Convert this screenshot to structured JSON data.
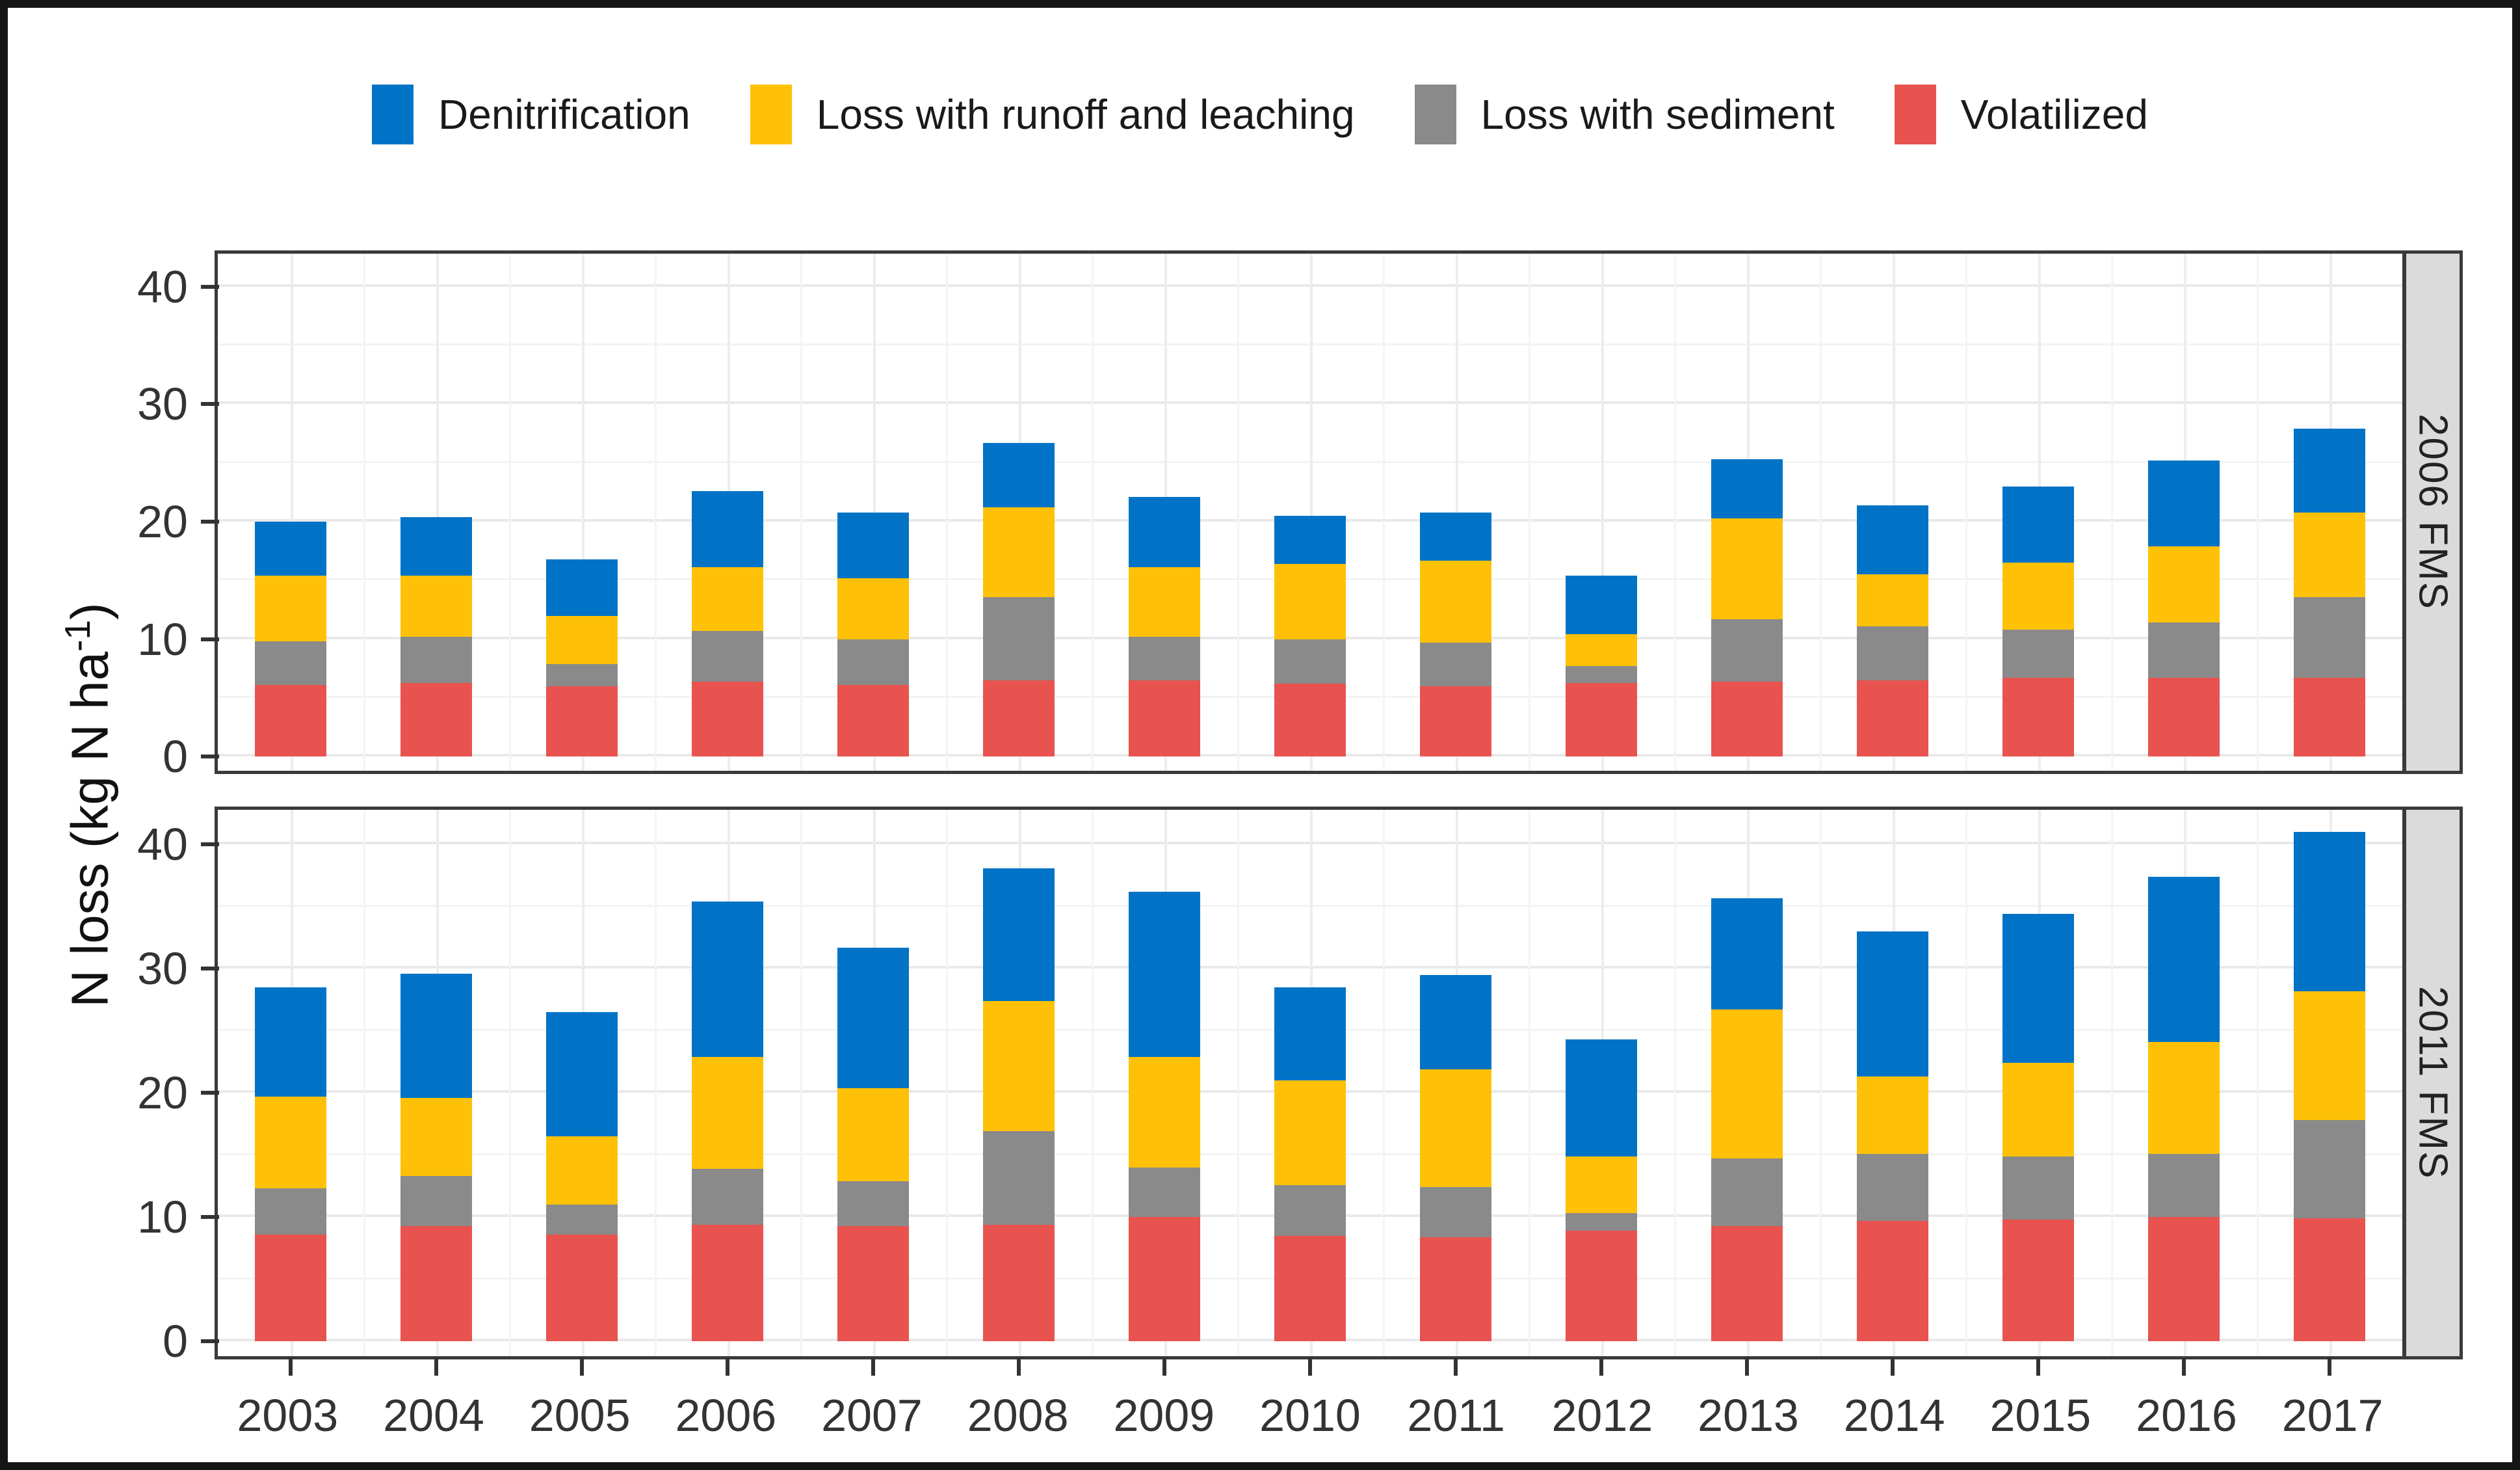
{
  "chart_data": {
    "type": "bar",
    "stacked": true,
    "title": "",
    "ylabel": "N loss (kg N ha-1)",
    "ylabel_parts": {
      "pre": "N loss (kg N ha",
      "sup": "-1",
      "post": ")"
    },
    "categories": [
      "2003",
      "2004",
      "2005",
      "2006",
      "2007",
      "2008",
      "2009",
      "2010",
      "2011",
      "2012",
      "2013",
      "2014",
      "2015",
      "2016",
      "2017"
    ],
    "yticks": [
      0,
      10,
      20,
      30,
      40
    ],
    "ylim": [
      0,
      40
    ],
    "grid": "major and minor horizontal + vertical light-gray gridlines on white",
    "legend_position": "top",
    "legend": [
      "Denitrification",
      "Loss with runoff and leaching",
      "Loss with sediment",
      "Volatilized"
    ],
    "colors": {
      "Denitrification": "#0073C6",
      "Loss with runoff and leaching": "#FFC107",
      "Loss with sediment": "#8A8A8A",
      "Volatilized": "#E8534F"
    },
    "series_order_bottom_to_top": [
      "Volatilized",
      "Loss with sediment",
      "Loss with runoff and leaching",
      "Denitrification"
    ],
    "panels": [
      {
        "label": "2006 FMS",
        "series": [
          {
            "name": "Volatilized",
            "values": [
              6.1,
              6.3,
              6.0,
              6.4,
              6.1,
              6.5,
              6.5,
              6.2,
              6.0,
              6.3,
              6.4,
              6.5,
              6.7,
              6.7,
              6.7
            ]
          },
          {
            "name": "Loss with sediment",
            "values": [
              3.7,
              3.9,
              1.9,
              4.3,
              3.9,
              7.1,
              3.7,
              3.8,
              3.7,
              1.4,
              5.3,
              4.6,
              4.1,
              4.7,
              6.9
            ]
          },
          {
            "name": "Loss with runoff and leaching",
            "values": [
              5.6,
              5.2,
              4.1,
              5.4,
              5.2,
              7.6,
              5.9,
              6.4,
              7.0,
              2.7,
              8.6,
              4.4,
              5.7,
              6.5,
              7.2
            ]
          },
          {
            "name": "Denitrification",
            "values": [
              4.6,
              5.0,
              4.8,
              6.5,
              5.6,
              5.5,
              6.0,
              4.1,
              4.1,
              5.0,
              5.0,
              5.9,
              6.5,
              7.3,
              7.1
            ]
          }
        ],
        "totals": [
          20.0,
          20.4,
          16.8,
          22.6,
          20.8,
          26.7,
          22.1,
          20.5,
          20.8,
          15.4,
          25.3,
          21.4,
          23.0,
          25.2,
          27.9
        ]
      },
      {
        "label": "2011 FMS",
        "series": [
          {
            "name": "Volatilized",
            "values": [
              8.6,
              9.3,
              8.6,
              9.4,
              9.3,
              9.4,
              10.0,
              8.5,
              8.4,
              8.9,
              9.3,
              9.7,
              9.8,
              10.0,
              9.9
            ]
          },
          {
            "name": "Loss with sediment",
            "values": [
              3.7,
              4.0,
              2.4,
              4.5,
              3.6,
              7.5,
              4.0,
              4.1,
              4.0,
              1.4,
              5.4,
              5.4,
              5.1,
              5.1,
              7.9
            ]
          },
          {
            "name": "Loss with runoff and leaching",
            "values": [
              7.4,
              6.3,
              5.5,
              9.0,
              7.5,
              10.5,
              8.9,
              8.4,
              9.5,
              4.6,
              12.0,
              6.2,
              7.5,
              9.0,
              10.4
            ]
          },
          {
            "name": "Denitrification",
            "values": [
              8.8,
              10.0,
              10.0,
              12.5,
              11.3,
              10.7,
              13.3,
              7.5,
              7.6,
              9.4,
              9.0,
              11.7,
              12.0,
              13.3,
              12.8
            ]
          }
        ],
        "totals": [
          28.5,
          29.6,
          26.5,
          35.4,
          31.7,
          38.1,
          36.2,
          28.5,
          29.5,
          24.3,
          35.7,
          33.0,
          34.4,
          37.4,
          41.0
        ]
      }
    ]
  }
}
